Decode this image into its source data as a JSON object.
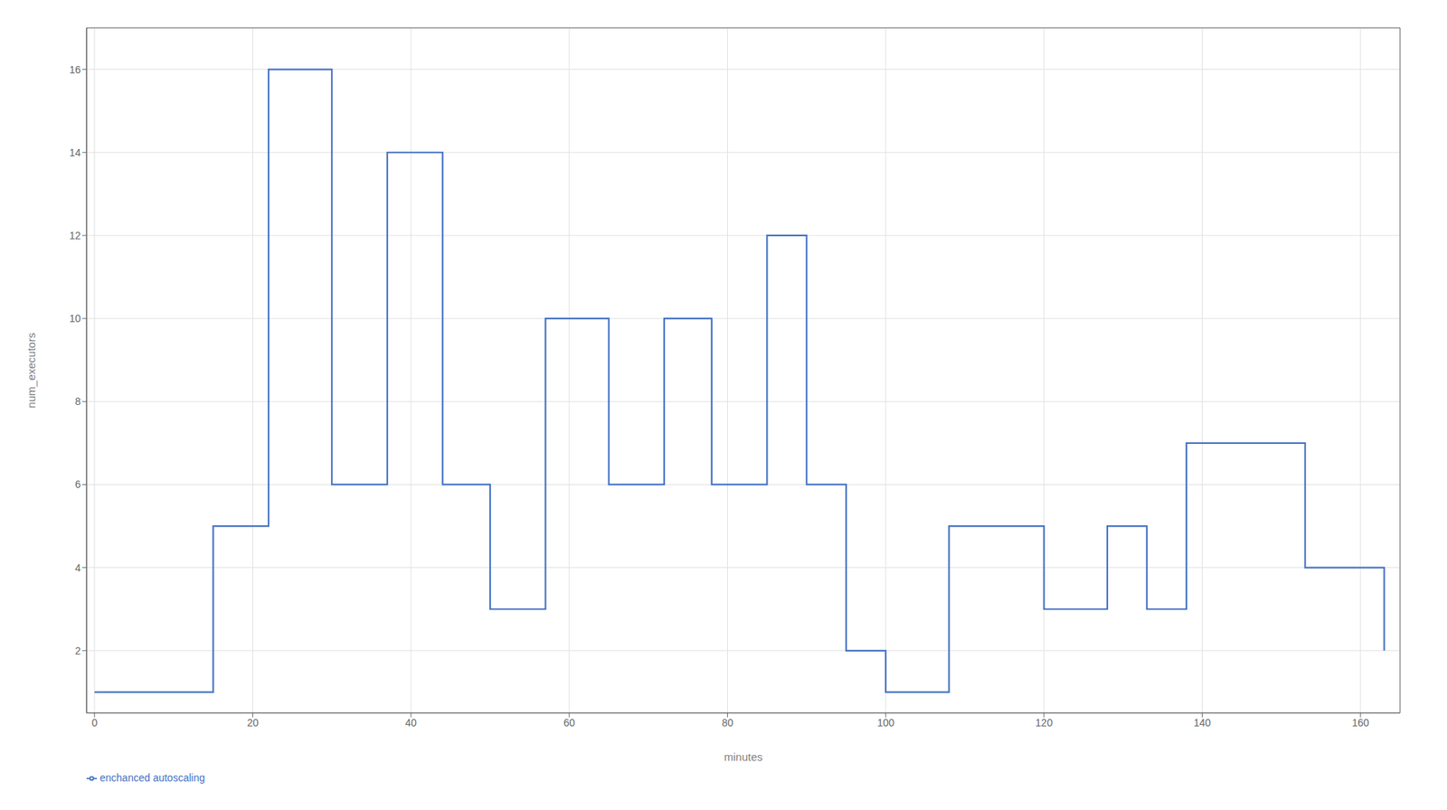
{
  "chart_data": {
    "type": "line",
    "x": [
      0,
      10,
      15,
      22,
      30,
      37,
      44,
      50,
      57,
      65,
      72,
      78,
      85,
      90,
      95,
      100,
      108,
      115,
      120,
      128,
      133,
      138,
      148,
      153,
      160,
      163
    ],
    "series": [
      {
        "name": "enchanced autoscaling",
        "color": "#4472C4",
        "values": [
          1,
          1,
          5,
          16,
          6,
          14,
          6,
          3,
          10,
          6,
          10,
          6,
          12,
          6,
          2,
          1,
          5,
          5,
          3,
          5,
          3,
          7,
          7,
          4,
          4,
          2
        ]
      }
    ],
    "xlabel": "minutes",
    "ylabel": "num_executors",
    "xlim": [
      -1,
      165
    ],
    "ylim": [
      0.5,
      17
    ],
    "xticks": [
      0,
      20,
      40,
      60,
      80,
      100,
      120,
      140,
      160
    ],
    "yticks": [
      2,
      4,
      6,
      8,
      10,
      12,
      14,
      16
    ],
    "grid": true,
    "legend": "bottom",
    "line_style": "step"
  }
}
